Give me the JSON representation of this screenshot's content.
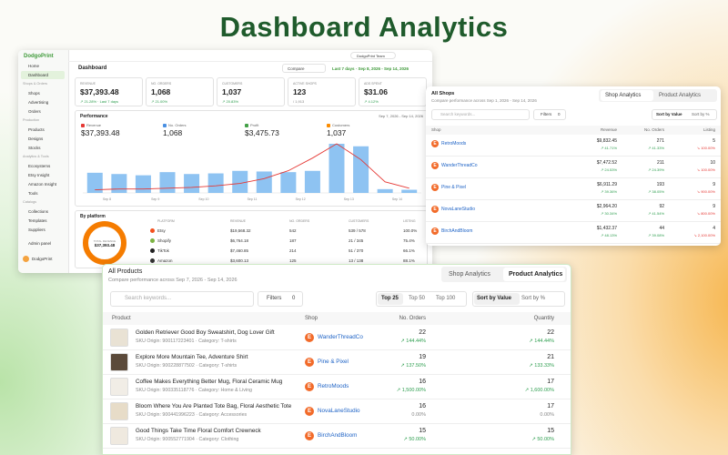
{
  "title": "Dashboard Analytics",
  "dashboard": {
    "brand": "DodgoPrint",
    "team": "DodgoPrint Team",
    "sidebar": [
      "Home",
      "Dashboard",
      "Shops & Orders",
      "Shops",
      "Advertising",
      "Orders",
      "Production",
      "Products",
      "Designs",
      "Stocks",
      "Analytics & Tools",
      "Ecosystems",
      "Etsy Insight",
      "Amazon Insight",
      "Tools",
      "Catalogs",
      "Collections",
      "Templates",
      "Suppliers"
    ],
    "admin": "Admin panel",
    "user": "DodgoPrint",
    "header": "Dashboard",
    "compare": "Compare",
    "range": "Last 7 days · Sep 8, 2026 - Sep 14, 2026",
    "kpis": [
      {
        "label": "REVENUE",
        "value": "$37,393.48",
        "delta": "↗ 21.28% · Last 7 days"
      },
      {
        "label": "NO. ORDERS",
        "value": "1,068",
        "delta": "↗ 21.00%"
      },
      {
        "label": "CUSTOMERS",
        "value": "1,037",
        "delta": "↗ 20.83%"
      },
      {
        "label": "ACTIVE SHOPS",
        "value": "123",
        "delta": "/ 1,913"
      },
      {
        "label": "ADS SPENT",
        "value": "$31.06",
        "delta": "↗ 4.12%"
      }
    ],
    "performance": {
      "title": "Performance",
      "range": "Sep 7, 2026 - Sep 14, 2026",
      "metrics": [
        {
          "label": "Revenue",
          "value": "$37,393.48",
          "color": "#e53935"
        },
        {
          "label": "No. Orders",
          "value": "1,068",
          "color": "#4a90e2"
        },
        {
          "label": "Profit",
          "value": "$3,475.73",
          "color": "#43a047"
        },
        {
          "label": "Customers",
          "value": "1,037",
          "color": "#fb8c00"
        }
      ],
      "bars": [
        32,
        30,
        28,
        33,
        30,
        31,
        35,
        34,
        33,
        35,
        78,
        74,
        6,
        5
      ],
      "bar_color": "#8ec3f2",
      "line": [
        4,
        5,
        5,
        6,
        7,
        9,
        12,
        18,
        28,
        44,
        62,
        42,
        14,
        6
      ],
      "line_color": "#e53935",
      "xlabels": [
        "Sep 8",
        "Sep 9",
        "Sep 10",
        "Sep 11",
        "Sep 12",
        "Sep 13",
        "Sep 14"
      ]
    },
    "platforms": {
      "title": "By platform",
      "center_label": "TOTAL REVENUE",
      "center_value": "$37,393.48",
      "ring_color": "#f57c00",
      "columns": [
        "PLATFORM",
        "REVENUE",
        "NO. ORDERS",
        "CUSTOMERS",
        "LISTING"
      ],
      "rows": [
        {
          "color": "#f4511e",
          "cells": [
            "Etsy",
            "$19,568.32",
            "542",
            "539 / 578",
            "100.0%"
          ]
        },
        {
          "color": "#7cb342",
          "cells": [
            "Shopify",
            "$6,764.18",
            "187",
            "21 / 345",
            "75.4%"
          ]
        },
        {
          "color": "#212121",
          "cells": [
            "TikTok",
            "$7,460.85",
            "214",
            "51 / 370",
            "66.1%"
          ]
        },
        {
          "color": "#333333",
          "cells": [
            "Amazon",
            "$3,600.13",
            "125",
            "13 / 138",
            "88.1%"
          ]
        }
      ]
    }
  },
  "shops": {
    "title": "All Shops",
    "subtitle": "Compare performance across Sep 1, 2026 - Sep 14, 2026",
    "tabs": [
      "Shop Analytics",
      "Product Analytics"
    ],
    "search": "Search keywords...",
    "filters": "Filters",
    "filter_count": 0,
    "sort": [
      "Sort by Value",
      "Sort by %"
    ],
    "columns": [
      "Shop",
      "Revenue",
      "No. Orders",
      "Listing"
    ],
    "rows": [
      {
        "initial": "E",
        "shop": "RetroMoods",
        "revenue": "$9,832.45",
        "revenue_change": "↗ 41.71%",
        "orders": 271,
        "orders_change": "↗ 41.33%",
        "listing": 5,
        "listing_change": "↘ 100.00%"
      },
      {
        "initial": "E",
        "shop": "WanderThreadCo",
        "revenue": "$7,472.52",
        "revenue_change": "↗ 24.53%",
        "orders": 211,
        "orders_change": "↗ 24.39%",
        "listing": 10,
        "listing_change": "↘ 100.00%"
      },
      {
        "initial": "E",
        "shop": "Pine & Pixel",
        "revenue": "$6,911.29",
        "revenue_change": "↗ 39.36%",
        "orders": 193,
        "orders_change": "↗ 38.05%",
        "listing": 9,
        "listing_change": "↘ 900.00%"
      },
      {
        "initial": "E",
        "shop": "NovaLaneStudio",
        "revenue": "$2,964.20",
        "revenue_change": "↗ 30.34%",
        "orders": 92,
        "orders_change": "↗ 41.54%",
        "listing": 9,
        "listing_change": "↘ 800.00%"
      },
      {
        "initial": "E",
        "shop": "BirchAndBloom",
        "revenue": "$1,432.37",
        "revenue_change": "↗ 48.13%",
        "orders": 44,
        "orders_change": "↗ 39.08%",
        "listing": 4,
        "listing_change": "↘ 2,100.00%"
      }
    ]
  },
  "products": {
    "title": "All Products",
    "subtitle": "Compare performance across Sep 7, 2026 - Sep 14, 2026",
    "tabs": [
      "Shop Analytics",
      "Product Analytics"
    ],
    "search": "Search keywords...",
    "filters": "Filters",
    "filter_count": 0,
    "top": [
      "Top 25",
      "Top 50",
      "Top 100"
    ],
    "sort": [
      "Sort by Value",
      "Sort by %"
    ],
    "columns": [
      "Product",
      "Shop",
      "No. Orders",
      "Quantity"
    ],
    "rows": [
      {
        "name": "Golden Retriever Good Boy Sweatshirt, Dog Lover Gift",
        "sku": "SKU Origin: 900117223401 · Category: T-shirts",
        "initial": "E",
        "shop": "WanderThreadCo",
        "orders": 22,
        "orders_change": "↗ 144.44%",
        "quantity": 22,
        "quantity_change": "↗ 144.44%"
      },
      {
        "name": "Explore More Mountain Tee, Adventure Shirt",
        "sku": "SKU Origin: 900228877502 · Category: T-shirts",
        "initial": "E",
        "shop": "Pine & Pixel",
        "orders": 19,
        "orders_change": "↗ 137.50%",
        "quantity": 21,
        "quantity_change": "↗ 133.33%"
      },
      {
        "name": "Coffee Makes Everything Better Mug, Floral Ceramic Mug",
        "sku": "SKU Origin: 900335118776 · Category: Home & Living",
        "initial": "E",
        "shop": "RetroMoods",
        "orders": 16,
        "orders_change": "↗ 1,500.00%",
        "quantity": 17,
        "quantity_change": "↗ 1,600.00%"
      },
      {
        "name": "Bloom Where You Are Planted Tote Bag, Floral Aesthetic Tote",
        "sku": "SKU Origin: 900441996223 · Category: Accessories",
        "initial": "E",
        "shop": "NovaLaneStudio",
        "orders": 16,
        "orders_change": "0.00%",
        "quantity": 17,
        "quantity_change": "0.00%"
      },
      {
        "name": "Good Things Take Time Floral Comfort Crewneck",
        "sku": "SKU Origin: 900552771904 · Category: Clothing",
        "initial": "E",
        "shop": "BirchAndBloom",
        "orders": 15,
        "orders_change": "↗ 50.00%",
        "quantity": 15,
        "quantity_change": "↗ 50.00%"
      }
    ]
  }
}
